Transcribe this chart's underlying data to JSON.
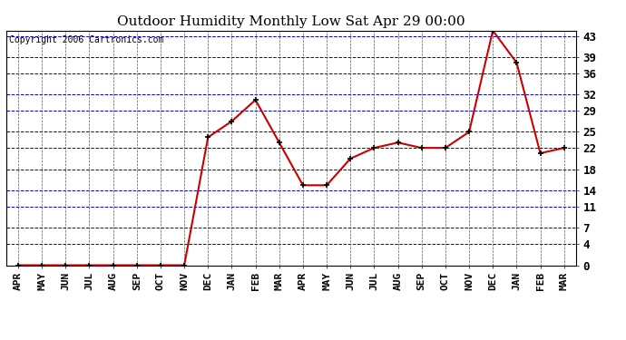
{
  "title": "Outdoor Humidity Monthly Low Sat Apr 29 00:00",
  "copyright": "Copyright 2006 Cartronics.com",
  "x_labels": [
    "APR",
    "MAY",
    "JUN",
    "JUL",
    "AUG",
    "SEP",
    "OCT",
    "NOV",
    "DEC",
    "JAN",
    "FEB",
    "MAR",
    "APR",
    "MAY",
    "JUN",
    "JUL",
    "AUG",
    "SEP",
    "OCT",
    "NOV",
    "DEC",
    "JAN",
    "FEB",
    "MAR"
  ],
  "y_values": [
    0,
    0,
    0,
    0,
    0,
    0,
    0,
    0,
    24,
    27,
    31,
    23,
    15,
    15,
    20,
    22,
    23,
    22,
    22,
    25,
    44,
    38,
    21,
    22
  ],
  "y_ticks": [
    0,
    4,
    7,
    11,
    14,
    18,
    22,
    25,
    29,
    32,
    36,
    39,
    43
  ],
  "ylim": [
    0,
    44
  ],
  "line_color": "#cc0000",
  "marker_color": "#000000",
  "grid_color_h": "#0000cc",
  "grid_color_v": "#555555",
  "bg_color": "#ffffff",
  "plot_bg_color": "#ffffff",
  "title_fontsize": 11,
  "copyright_fontsize": 7,
  "tick_label_fontsize": 8,
  "y_tick_fontsize": 9,
  "marker_size": 4
}
